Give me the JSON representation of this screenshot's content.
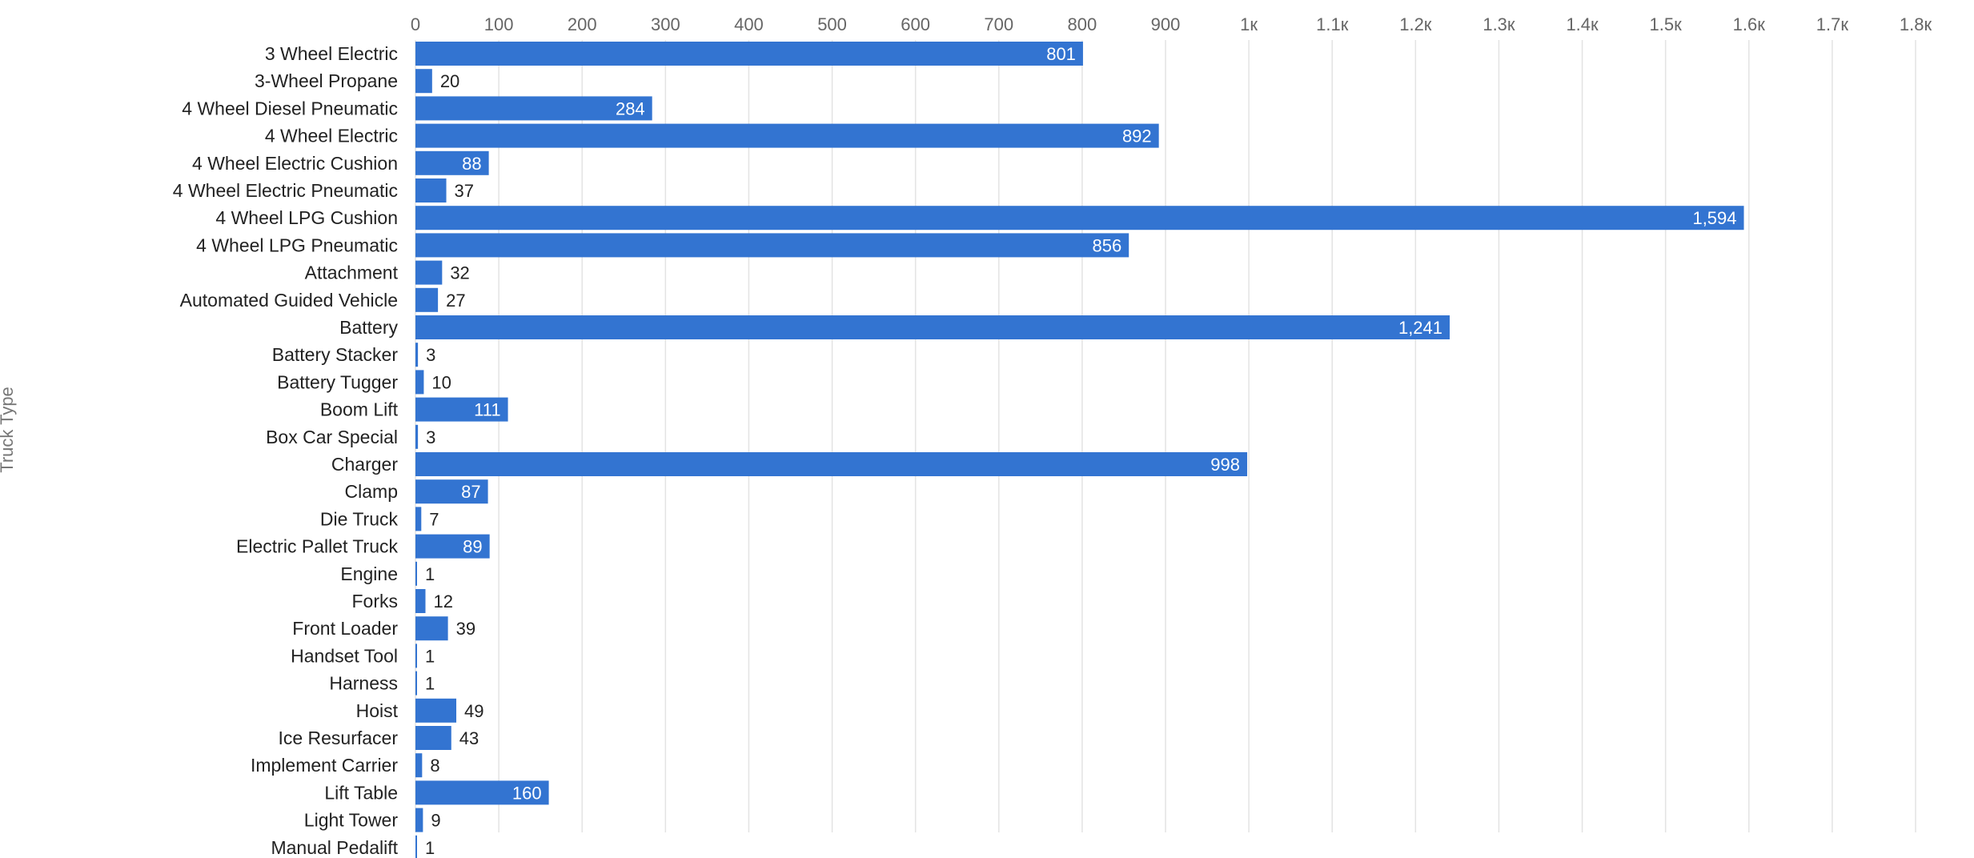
{
  "chart_data": {
    "type": "bar",
    "orientation": "horizontal",
    "ylabel": "Truck Type",
    "xlim": [
      0,
      1800
    ],
    "x_ticks": [
      0,
      100,
      200,
      300,
      400,
      500,
      600,
      700,
      800,
      900,
      1000,
      1100,
      1200,
      1300,
      1400,
      1500,
      1600,
      1700,
      1800
    ],
    "x_tick_labels": [
      "0",
      "100",
      "200",
      "300",
      "400",
      "500",
      "600",
      "700",
      "800",
      "900",
      "1к",
      "1.1к",
      "1.2к",
      "1.3к",
      "1.4к",
      "1.5к",
      "1.6к",
      "1.7к",
      "1.8к"
    ],
    "grid": true,
    "bar_color": "#3374d1",
    "categories": [
      "3 Wheel Electric",
      "3-Wheel Propane",
      "4 Wheel Diesel Pneumatic",
      "4 Wheel Electric",
      "4 Wheel Electric Cushion",
      "4 Wheel Electric Pneumatic",
      "4 Wheel LPG Cushion",
      "4 Wheel LPG Pneumatic",
      "Attachment",
      "Automated Guided Vehicle",
      "Battery",
      "Battery Stacker",
      "Battery Tugger",
      "Boom Lift",
      "Box Car Special",
      "Charger",
      "Clamp",
      "Die Truck",
      "Electric Pallet Truck",
      "Engine",
      "Forks",
      "Front Loader",
      "Handset Tool",
      "Harness",
      "Hoist",
      "Ice Resurfacer",
      "Implement Carrier",
      "Lift Table",
      "Light Tower",
      "Manual Pedalift"
    ],
    "values": [
      801,
      20,
      284,
      892,
      88,
      37,
      1594,
      856,
      32,
      27,
      1241,
      3,
      10,
      111,
      3,
      998,
      87,
      7,
      89,
      1,
      12,
      39,
      1,
      1,
      49,
      43,
      8,
      160,
      9,
      1
    ],
    "value_labels": [
      "801",
      "20",
      "284",
      "892",
      "88",
      "37",
      "1,594",
      "856",
      "32",
      "27",
      "1,241",
      "3",
      "10",
      "111",
      "3",
      "998",
      "87",
      "7",
      "89",
      "1",
      "12",
      "39",
      "1",
      "1",
      "49",
      "43",
      "8",
      "160",
      "9",
      "1"
    ]
  }
}
